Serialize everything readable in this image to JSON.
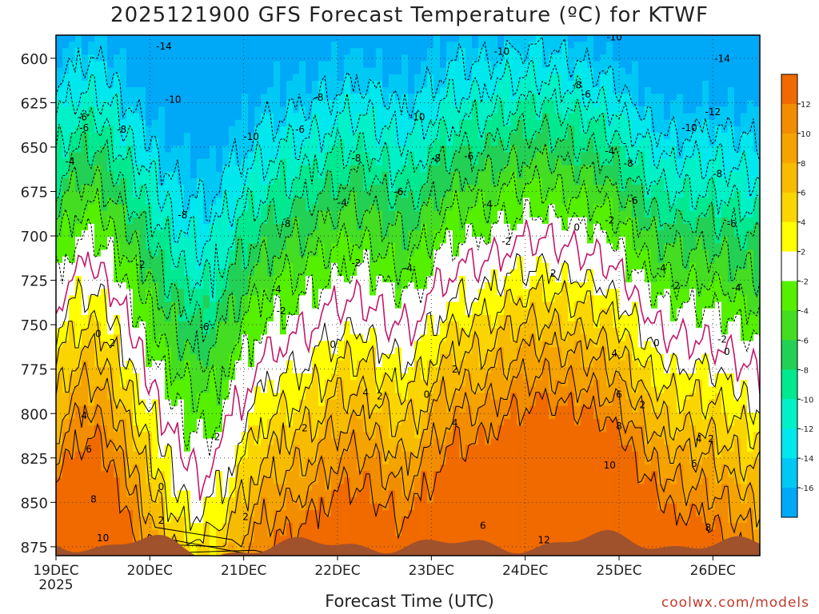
{
  "chart_data": {
    "type": "heatmap",
    "title": "2025121900 GFS Forecast Temperature (ºC) for KTWF",
    "xlabel": "Forecast Time (UTC)",
    "ylabel": "",
    "credit": "coolwx.com/models",
    "year_label": "2025",
    "x_days": [
      "19DEC",
      "20DEC",
      "21DEC",
      "22DEC",
      "23DEC",
      "24DEC",
      "25DEC",
      "26DEC"
    ],
    "xlim_days": [
      0,
      7.5
    ],
    "ylim_mb": [
      880,
      587
    ],
    "y_ticks": [
      600,
      625,
      650,
      675,
      700,
      725,
      750,
      775,
      800,
      825,
      850,
      875
    ],
    "colorbar": {
      "labels": [
        12,
        10,
        8,
        6,
        4,
        2,
        -2,
        -4,
        -6,
        -8,
        -10,
        -12,
        -14,
        -16
      ],
      "bounds": [
        14,
        12,
        10,
        8,
        6,
        4,
        2,
        -2,
        -4,
        -6,
        -8,
        -10,
        -12,
        -14,
        -16,
        -18
      ],
      "colors": [
        "#f06a00",
        "#f28c00",
        "#f5a300",
        "#f7bb00",
        "#fbd500",
        "#ffff00",
        "#ffffff",
        "#55f000",
        "#44dd22",
        "#22d055",
        "#00e890",
        "#00f0c8",
        "#00e8ee",
        "#00c8f5",
        "#00a8f8"
      ],
      "ground_color": "#a0522d"
    },
    "contour_labels": [
      {
        "day": 0.5,
        "p": 872,
        "t": "10"
      },
      {
        "day": 0.4,
        "p": 850,
        "t": "8"
      },
      {
        "day": 0.35,
        "p": 822,
        "t": "6"
      },
      {
        "day": 0.3,
        "p": 803,
        "t": "4"
      },
      {
        "day": 0.6,
        "p": 762,
        "t": "2"
      },
      {
        "day": 0.45,
        "p": 757,
        "t": "0"
      },
      {
        "day": 0.9,
        "p": 718,
        "t": "-2"
      },
      {
        "day": 0.15,
        "p": 660,
        "t": "-4"
      },
      {
        "day": 0.28,
        "p": 635,
        "t": "-6"
      },
      {
        "day": 0.3,
        "p": 641,
        "t": "-6"
      },
      {
        "day": 0.7,
        "p": 642,
        "t": "-8"
      },
      {
        "day": 1.25,
        "p": 625,
        "t": "-10"
      },
      {
        "day": 1.15,
        "p": 595,
        "t": "-14"
      },
      {
        "day": 1.35,
        "p": 690,
        "t": "-8"
      },
      {
        "day": 1.58,
        "p": 753,
        "t": "-6"
      },
      {
        "day": 1.7,
        "p": 815,
        "t": "-2"
      },
      {
        "day": 1.12,
        "p": 843,
        "t": "0"
      },
      {
        "day": 1.12,
        "p": 862,
        "t": "2"
      },
      {
        "day": 2.02,
        "p": 860,
        "t": "2"
      },
      {
        "day": 2.45,
        "p": 695,
        "t": "-8"
      },
      {
        "day": 2.35,
        "p": 732,
        "t": "-4"
      },
      {
        "day": 2.08,
        "p": 646,
        "t": "-10"
      },
      {
        "day": 2.6,
        "p": 642,
        "t": "-6"
      },
      {
        "day": 2.4,
        "p": 744,
        "t": "-2"
      },
      {
        "day": 2.65,
        "p": 810,
        "t": "2"
      },
      {
        "day": 2.8,
        "p": 624,
        "t": "-8"
      },
      {
        "day": 3.05,
        "p": 683,
        "t": "-4"
      },
      {
        "day": 3.2,
        "p": 717,
        "t": "-2"
      },
      {
        "day": 2.95,
        "p": 763,
        "t": "0"
      },
      {
        "day": 3.3,
        "p": 790,
        "t": "4"
      },
      {
        "day": 3.45,
        "p": 792,
        "t": "2"
      },
      {
        "day": 3.65,
        "p": 677,
        "t": "-6"
      },
      {
        "day": 3.75,
        "p": 720,
        "t": "-4"
      },
      {
        "day": 3.85,
        "p": 635,
        "t": "-10"
      },
      {
        "day": 3.2,
        "p": 658,
        "t": "-8"
      },
      {
        "day": 3.95,
        "p": 791,
        "t": "0"
      },
      {
        "day": 4.25,
        "p": 777,
        "t": "2"
      },
      {
        "day": 4.25,
        "p": 807,
        "t": "4"
      },
      {
        "day": 4.05,
        "p": 658,
        "t": "-8"
      },
      {
        "day": 4.4,
        "p": 657,
        "t": "-6"
      },
      {
        "day": 4.6,
        "p": 684,
        "t": "-4"
      },
      {
        "day": 4.8,
        "p": 705,
        "t": "-2"
      },
      {
        "day": 4.75,
        "p": 598,
        "t": "-10"
      },
      {
        "day": 4.55,
        "p": 865,
        "t": "6"
      },
      {
        "day": 5.2,
        "p": 873,
        "t": "12"
      },
      {
        "day": 5.3,
        "p": 723,
        "t": "2"
      },
      {
        "day": 5.55,
        "p": 697,
        "t": "0"
      },
      {
        "day": 5.55,
        "p": 617,
        "t": "-8"
      },
      {
        "day": 5.65,
        "p": 622,
        "t": "-6"
      },
      {
        "day": 5.9,
        "p": 654,
        "t": "-4"
      },
      {
        "day": 5.9,
        "p": 831,
        "t": "10"
      },
      {
        "day": 6.0,
        "p": 809,
        "t": "8"
      },
      {
        "day": 5.95,
        "p": 768,
        "t": "4"
      },
      {
        "day": 6.0,
        "p": 791,
        "t": "6"
      },
      {
        "day": 5.95,
        "p": 590,
        "t": "-10"
      },
      {
        "day": 6.1,
        "p": 661,
        "t": "-8"
      },
      {
        "day": 6.15,
        "p": 682,
        "t": "-6"
      },
      {
        "day": 5.9,
        "p": 693,
        "t": "-2"
      },
      {
        "day": 6.25,
        "p": 797,
        "t": "2"
      },
      {
        "day": 6.4,
        "p": 762,
        "t": "0"
      },
      {
        "day": 6.45,
        "p": 720,
        "t": "-4"
      },
      {
        "day": 6.6,
        "p": 730,
        "t": "-2"
      },
      {
        "day": 6.75,
        "p": 641,
        "t": "-10"
      },
      {
        "day": 7.0,
        "p": 632,
        "t": "-12"
      },
      {
        "day": 7.1,
        "p": 602,
        "t": "-14"
      },
      {
        "day": 7.05,
        "p": 667,
        "t": "-8"
      },
      {
        "day": 7.2,
        "p": 695,
        "t": "-6"
      },
      {
        "day": 7.25,
        "p": 731,
        "t": "-4"
      },
      {
        "day": 7.1,
        "p": 760,
        "t": "-2"
      },
      {
        "day": 7.15,
        "p": 767,
        "t": "0"
      },
      {
        "day": 6.85,
        "p": 816,
        "t": "4"
      },
      {
        "day": 6.98,
        "p": 816,
        "t": "2"
      },
      {
        "day": 6.8,
        "p": 830,
        "t": "6"
      },
      {
        "day": 6.95,
        "p": 866,
        "t": "8"
      }
    ]
  }
}
